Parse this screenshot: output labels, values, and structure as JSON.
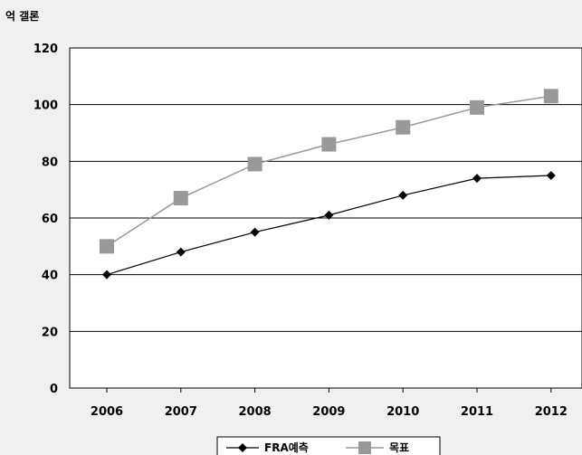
{
  "chart_data": {
    "type": "line",
    "ylabel": "억 갤론",
    "categories": [
      "2006",
      "2007",
      "2008",
      "2009",
      "2010",
      "2011",
      "2012"
    ],
    "ylim": [
      0,
      120
    ],
    "yticks": [
      0,
      20,
      40,
      60,
      80,
      100,
      120
    ],
    "grid": true,
    "legend_position": "bottom",
    "series": [
      {
        "name": "FRA예측",
        "values": [
          40,
          48,
          55,
          61,
          68,
          74,
          75
        ],
        "color": "#000000",
        "marker": "diamond"
      },
      {
        "name": "목표",
        "values": [
          50,
          67,
          79,
          86,
          92,
          99,
          103
        ],
        "color": "#999999",
        "marker": "square"
      }
    ]
  }
}
